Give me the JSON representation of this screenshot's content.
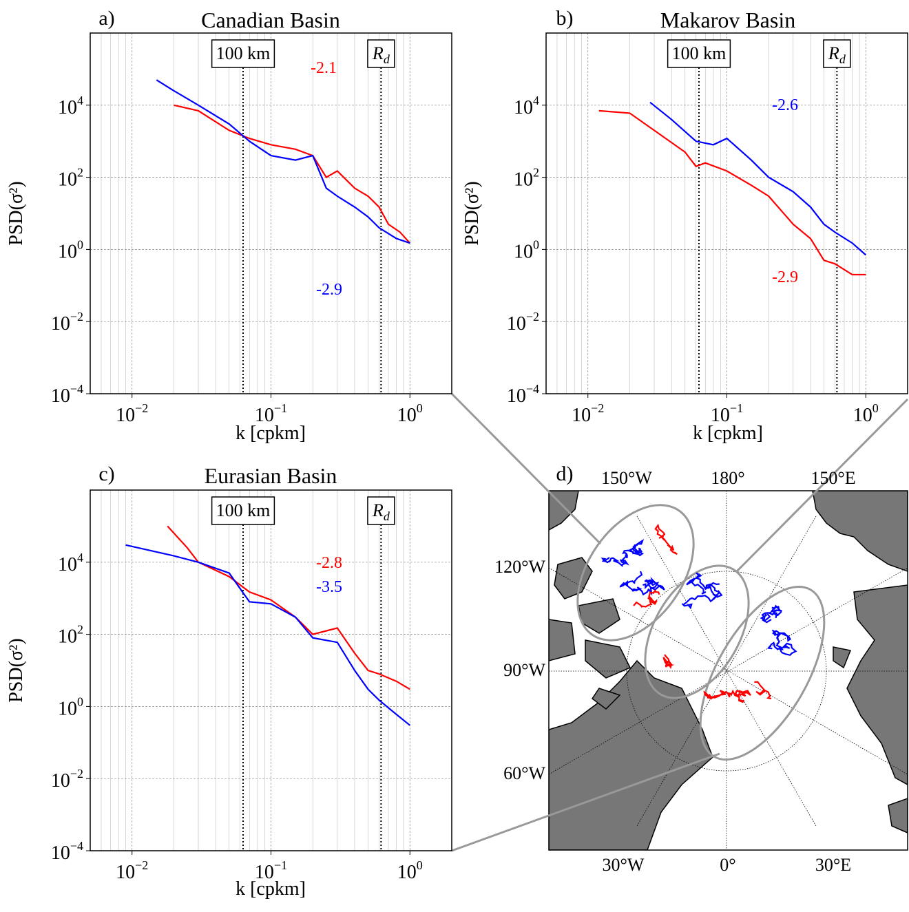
{
  "chart_data": [
    {
      "type": "line",
      "label": "a)",
      "title": "Canadian Basin",
      "xlabel": "k [cpkm]",
      "ylabel": "PSD(σ²)",
      "xscale": "log",
      "yscale": "log",
      "grid": true,
      "xlim": [
        0.005,
        2
      ],
      "ylim": [
        0.0001,
        1000000
      ],
      "xticks": [
        {
          "value": 0.01,
          "label": "10",
          "exponent": "−2"
        },
        {
          "value": 0.1,
          "label": "10",
          "exponent": "−1"
        },
        {
          "value": 1,
          "label": "10",
          "exponent": "0"
        }
      ],
      "yticks": [
        {
          "value": 0.0001,
          "label": "10",
          "exponent": "−4"
        },
        {
          "value": 0.01,
          "label": "10",
          "exponent": "−2"
        },
        {
          "value": 1,
          "label": "10",
          "exponent": "0"
        },
        {
          "value": 100,
          "label": "10",
          "exponent": "2"
        },
        {
          "value": 10000,
          "label": "10",
          "exponent": "4"
        }
      ],
      "vlines": [
        {
          "value": 0.063,
          "label": "100 km"
        },
        {
          "value": 0.62,
          "label": "R",
          "subscript": "d"
        }
      ],
      "series": [
        {
          "color": "#ff0000",
          "x": [
            0.02,
            0.03,
            0.05,
            0.07,
            0.1,
            0.15,
            0.2,
            0.25,
            0.3,
            0.4,
            0.5,
            0.6,
            0.7,
            0.85,
            1.0
          ],
          "values": [
            10000,
            7000,
            2000,
            1200,
            800,
            600,
            400,
            100,
            150,
            50,
            30,
            15,
            5,
            3,
            1.5
          ]
        },
        {
          "color": "#0000ff",
          "x": [
            0.015,
            0.02,
            0.03,
            0.05,
            0.07,
            0.1,
            0.15,
            0.2,
            0.25,
            0.3,
            0.4,
            0.5,
            0.6,
            0.8,
            1.0
          ],
          "values": [
            50000,
            25000,
            10000,
            3000,
            1000,
            400,
            300,
            400,
            50,
            30,
            15,
            8,
            4,
            2,
            1.5
          ]
        }
      ],
      "annotations": [
        {
          "text": "-2.1",
          "color": "#ff0000"
        },
        {
          "text": "-2.9",
          "color": "#0000ff"
        }
      ]
    },
    {
      "type": "line",
      "label": "b)",
      "title": "Makarov Basin",
      "xlabel": "k [cpkm]",
      "ylabel": "PSD(σ²)",
      "xscale": "log",
      "yscale": "log",
      "grid": true,
      "xlim": [
        0.005,
        2
      ],
      "ylim": [
        0.0001,
        1000000
      ],
      "xticks": [
        {
          "value": 0.01,
          "label": "10",
          "exponent": "−2"
        },
        {
          "value": 0.1,
          "label": "10",
          "exponent": "−1"
        },
        {
          "value": 1,
          "label": "10",
          "exponent": "0"
        }
      ],
      "yticks": [
        {
          "value": 0.0001,
          "label": "10",
          "exponent": "−4"
        },
        {
          "value": 0.01,
          "label": "10",
          "exponent": "−2"
        },
        {
          "value": 1,
          "label": "10",
          "exponent": "0"
        },
        {
          "value": 100,
          "label": "10",
          "exponent": "2"
        },
        {
          "value": 10000,
          "label": "10",
          "exponent": "4"
        }
      ],
      "vlines": [
        {
          "value": 0.063,
          "label": "100 km"
        },
        {
          "value": 0.62,
          "label": "R",
          "subscript": "d"
        }
      ],
      "series": [
        {
          "color": "#ff0000",
          "x": [
            0.012,
            0.02,
            0.03,
            0.05,
            0.06,
            0.07,
            0.1,
            0.15,
            0.2,
            0.3,
            0.4,
            0.5,
            0.6,
            0.8,
            1.0
          ],
          "values": [
            7000,
            6000,
            2000,
            500,
            200,
            250,
            150,
            60,
            30,
            5,
            2,
            0.5,
            0.4,
            0.2,
            0.2
          ]
        },
        {
          "color": "#0000ff",
          "x": [
            0.028,
            0.04,
            0.06,
            0.08,
            0.1,
            0.15,
            0.2,
            0.3,
            0.4,
            0.5,
            0.6,
            0.8,
            1.0
          ],
          "values": [
            12000,
            4000,
            1000,
            800,
            1200,
            300,
            100,
            40,
            15,
            5,
            3,
            1.5,
            0.7
          ]
        }
      ],
      "annotations": [
        {
          "text": "-2.6",
          "color": "#0000ff"
        },
        {
          "text": "-2.9",
          "color": "#ff0000"
        }
      ]
    },
    {
      "type": "line",
      "label": "c)",
      "title": "Eurasian Basin",
      "xlabel": "k [cpkm]",
      "ylabel": "PSD(σ²)",
      "xscale": "log",
      "yscale": "log",
      "grid": true,
      "xlim": [
        0.005,
        2
      ],
      "ylim": [
        0.0001,
        1000000
      ],
      "xticks": [
        {
          "value": 0.01,
          "label": "10",
          "exponent": "−2"
        },
        {
          "value": 0.1,
          "label": "10",
          "exponent": "−1"
        },
        {
          "value": 1,
          "label": "10",
          "exponent": "0"
        }
      ],
      "yticks": [
        {
          "value": 0.0001,
          "label": "10",
          "exponent": "−4"
        },
        {
          "value": 0.01,
          "label": "10",
          "exponent": "−2"
        },
        {
          "value": 1,
          "label": "10",
          "exponent": "0"
        },
        {
          "value": 100,
          "label": "10",
          "exponent": "2"
        },
        {
          "value": 10000,
          "label": "10",
          "exponent": "4"
        }
      ],
      "vlines": [
        {
          "value": 0.063,
          "label": "100 km"
        },
        {
          "value": 0.62,
          "label": "R",
          "subscript": "d"
        }
      ],
      "series": [
        {
          "color": "#ff0000",
          "x": [
            0.018,
            0.025,
            0.03,
            0.05,
            0.07,
            0.1,
            0.15,
            0.2,
            0.3,
            0.4,
            0.5,
            0.6,
            0.8,
            1.0
          ],
          "values": [
            100000,
            25000,
            10000,
            4000,
            1500,
            900,
            300,
            100,
            150,
            30,
            10,
            8,
            5,
            3
          ]
        },
        {
          "color": "#0000ff",
          "x": [
            0.009,
            0.02,
            0.03,
            0.05,
            0.07,
            0.1,
            0.15,
            0.2,
            0.3,
            0.4,
            0.5,
            0.6,
            0.8,
            1.0
          ],
          "values": [
            30000,
            15000,
            10000,
            5000,
            800,
            700,
            300,
            80,
            60,
            10,
            3,
            1.5,
            0.6,
            0.3
          ]
        }
      ],
      "annotations": [
        {
          "text": "-2.8",
          "color": "#ff0000"
        },
        {
          "text": "-3.5",
          "color": "#0000ff"
        }
      ]
    }
  ],
  "map": {
    "label": "d)",
    "top_labels": [
      "150°W",
      "180°",
      "150°E"
    ],
    "left_labels": [
      "120°W",
      "90°W",
      "60°W"
    ],
    "bottom_labels": [
      "30°W",
      "0°",
      "30°E"
    ]
  }
}
